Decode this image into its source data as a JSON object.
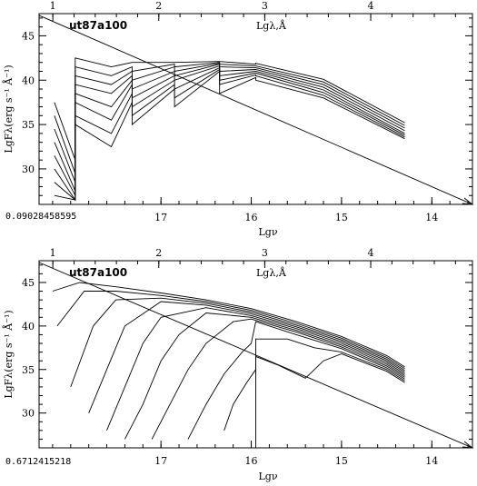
{
  "chart_data": [
    {
      "type": "line",
      "title": "ut87a100",
      "top_axis_label": "Lgλ,Å",
      "top_ticks": [
        "1",
        "2",
        "3",
        "4"
      ],
      "xlabel": "Lgν",
      "ylabel": "LgFλ(erg s⁻¹ Å⁻¹)",
      "x_ticks": [
        "17",
        "16",
        "15",
        "14"
      ],
      "y_ticks": [
        "30",
        "35",
        "40",
        "45"
      ],
      "corner_value": "0.09028458595",
      "xlim": [
        18.35,
        13.55
      ],
      "ylim": [
        26.0,
        47.5
      ],
      "top_axis_lim": [
        0.87,
        4.96
      ],
      "reference_line": {
        "x": [
          18.35,
          13.55
        ],
        "y": [
          47.3,
          26.0
        ]
      },
      "series": [
        {
          "x": [
            18.18,
            17.95,
            17.95,
            17.55,
            17.32,
            17.32,
            16.85,
            16.85,
            16.35,
            16.35,
            15.95,
            15.95,
            15.2,
            14.3
          ],
          "y": [
            27.0,
            26.5,
            42.5,
            41.5,
            42.0,
            42.0,
            42.0,
            42.0,
            42.1,
            42.1,
            41.8,
            41.9,
            40.1,
            35.2
          ]
        },
        {
          "x": [
            18.18,
            17.95,
            17.95,
            17.55,
            17.32,
            17.32,
            16.85,
            16.85,
            16.35,
            16.35,
            15.95,
            15.95,
            15.2,
            14.3
          ],
          "y": [
            28.5,
            26.5,
            41.5,
            40.5,
            41.5,
            41.0,
            41.8,
            41.5,
            42.0,
            41.8,
            41.6,
            41.6,
            39.8,
            34.9
          ]
        },
        {
          "x": [
            18.18,
            17.95,
            17.95,
            17.55,
            17.32,
            17.32,
            16.85,
            16.85,
            16.35,
            16.35,
            15.95,
            15.95,
            15.2,
            14.3
          ],
          "y": [
            30.0,
            26.5,
            40.5,
            39.5,
            41.0,
            40.0,
            41.5,
            41.0,
            41.9,
            41.5,
            41.4,
            41.4,
            39.5,
            34.6
          ]
        },
        {
          "x": [
            18.18,
            17.95,
            17.95,
            17.55,
            17.32,
            17.32,
            16.85,
            16.85,
            16.35,
            16.35,
            15.95,
            15.95,
            15.2,
            14.3
          ],
          "y": [
            31.5,
            27.0,
            39.5,
            38.5,
            40.5,
            39.0,
            41.0,
            40.5,
            41.8,
            41.0,
            41.2,
            41.2,
            39.2,
            34.3
          ]
        },
        {
          "x": [
            18.18,
            17.95,
            17.95,
            17.55,
            17.32,
            17.32,
            16.85,
            16.85,
            16.35,
            16.35,
            15.95,
            15.95,
            15.2,
            14.3
          ],
          "y": [
            33.0,
            27.5,
            38.5,
            37.0,
            40.0,
            38.0,
            40.5,
            40.0,
            41.6,
            40.5,
            41.0,
            41.0,
            38.9,
            34.0
          ]
        },
        {
          "x": [
            18.18,
            17.95,
            17.95,
            17.55,
            17.32,
            17.32,
            16.85,
            16.85,
            16.35,
            16.35,
            15.95,
            15.95,
            15.2,
            14.3
          ],
          "y": [
            34.5,
            28.5,
            37.5,
            35.5,
            39.5,
            37.0,
            40.0,
            39.0,
            41.4,
            40.0,
            40.8,
            40.8,
            38.6,
            33.8
          ]
        },
        {
          "x": [
            18.18,
            17.95,
            17.95,
            17.55,
            17.32,
            17.32,
            16.85,
            16.85,
            16.35,
            16.35,
            15.95,
            15.95,
            15.2,
            14.3
          ],
          "y": [
            36.0,
            29.5,
            36.0,
            34.0,
            38.5,
            36.0,
            39.5,
            38.0,
            41.2,
            39.5,
            40.6,
            40.5,
            38.3,
            33.6
          ]
        },
        {
          "x": [
            18.18,
            17.95,
            17.95,
            17.55,
            17.32,
            17.32,
            16.85,
            16.85,
            16.35,
            16.35,
            15.95,
            15.95,
            15.2,
            14.3
          ],
          "y": [
            37.5,
            31.0,
            35.0,
            32.5,
            37.5,
            35.0,
            39.0,
            37.0,
            41.0,
            38.5,
            40.3,
            40.0,
            38.0,
            33.4
          ]
        }
      ]
    },
    {
      "type": "line",
      "title": "ut87a100",
      "top_axis_label": "Lgλ,Å",
      "top_ticks": [
        "1",
        "2",
        "3",
        "4"
      ],
      "xlabel": "Lgν",
      "ylabel": "LgFλ(erg s⁻¹ Å⁻¹)",
      "x_ticks": [
        "17",
        "16",
        "15",
        "14"
      ],
      "y_ticks": [
        "30",
        "35",
        "40",
        "45"
      ],
      "corner_value": "0.6712415218",
      "xlim": [
        18.35,
        13.55
      ],
      "ylim": [
        26.0,
        47.5
      ],
      "top_axis_lim": [
        0.87,
        4.96
      ],
      "reference_line": {
        "x": [
          18.35,
          13.55
        ],
        "y": [
          47.3,
          26.0
        ]
      },
      "series": [
        {
          "x": [
            18.2,
            17.9,
            17.5,
            17.0,
            16.5,
            16.0,
            15.5,
            15.0,
            14.5,
            14.3
          ],
          "y": [
            44.0,
            45.0,
            44.5,
            43.8,
            43.0,
            42.0,
            40.5,
            38.8,
            36.6,
            35.3
          ]
        },
        {
          "x": [
            18.15,
            17.85,
            17.5,
            17.0,
            16.5,
            16.0,
            15.5,
            15.0,
            14.5,
            14.3
          ],
          "y": [
            40.0,
            44.0,
            44.0,
            43.5,
            42.8,
            41.8,
            40.3,
            38.6,
            36.4,
            35.1
          ]
        },
        {
          "x": [
            18.0,
            17.75,
            17.5,
            17.0,
            16.5,
            16.0,
            15.5,
            15.0,
            14.5,
            14.3
          ],
          "y": [
            33.0,
            40.0,
            43.0,
            43.2,
            42.6,
            41.6,
            40.1,
            38.4,
            36.2,
            34.9
          ]
        },
        {
          "x": [
            17.8,
            17.6,
            17.4,
            17.0,
            16.5,
            16.0,
            15.5,
            15.0,
            14.5,
            14.3
          ],
          "y": [
            30.0,
            35.0,
            40.0,
            42.8,
            42.4,
            41.4,
            39.9,
            38.2,
            36.0,
            34.7
          ]
        },
        {
          "x": [
            17.6,
            17.4,
            17.2,
            17.0,
            16.5,
            16.0,
            15.5,
            15.0,
            14.5,
            14.3
          ],
          "y": [
            28.0,
            33.0,
            38.0,
            41.0,
            42.1,
            41.2,
            39.7,
            38.0,
            35.8,
            34.5
          ]
        },
        {
          "x": [
            17.4,
            17.2,
            17.0,
            16.8,
            16.5,
            16.0,
            15.5,
            15.0,
            14.5,
            14.3
          ],
          "y": [
            27.0,
            31.0,
            36.0,
            39.0,
            41.5,
            41.0,
            39.5,
            37.8,
            35.6,
            34.3
          ]
        },
        {
          "x": [
            17.1,
            16.9,
            16.7,
            16.5,
            16.2,
            16.0,
            15.5,
            15.0,
            14.5,
            14.3
          ],
          "y": [
            27.0,
            31.0,
            35.0,
            38.0,
            40.5,
            40.8,
            39.3,
            37.6,
            35.4,
            34.1
          ]
        },
        {
          "x": [
            16.7,
            16.5,
            16.3,
            16.1,
            16.0,
            15.95,
            15.5,
            15.0,
            14.5,
            14.3
          ],
          "y": [
            27.0,
            31.0,
            34.5,
            37.0,
            38.0,
            40.5,
            39.0,
            37.4,
            35.2,
            33.9
          ]
        },
        {
          "x": [
            16.3,
            16.2,
            16.05,
            15.95,
            15.95,
            15.6,
            15.3,
            15.0,
            14.5,
            14.3
          ],
          "y": [
            28.0,
            31.0,
            33.5,
            35.0,
            38.5,
            38.5,
            37.5,
            37.0,
            35.0,
            33.7
          ]
        },
        {
          "x": [
            15.95,
            15.95,
            15.7,
            15.4,
            15.2,
            15.0,
            14.5,
            14.3
          ],
          "y": [
            26.0,
            36.5,
            35.5,
            34.0,
            36.0,
            36.8,
            34.8,
            33.5
          ]
        }
      ]
    }
  ]
}
